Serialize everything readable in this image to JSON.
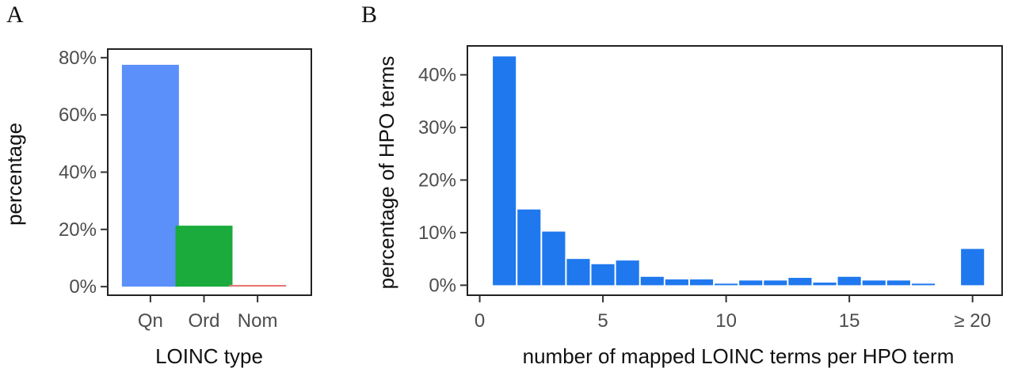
{
  "panels": {
    "a": "A",
    "b": "B"
  },
  "chart_data": [
    {
      "type": "bar",
      "panel": "A",
      "categories": [
        "Qn",
        "Ord",
        "Nom"
      ],
      "values": [
        77.5,
        21.3,
        0.6
      ],
      "colors": [
        "#5b8ff9",
        "#1aab3c",
        "#e87878"
      ],
      "xlabel": "LOINC type",
      "ylabel": "percentage",
      "ylim": [
        -3,
        83
      ],
      "yticks": [
        0,
        20,
        40,
        60,
        80
      ],
      "ytick_labels": [
        "0%",
        "20%",
        "40%",
        "60%",
        "80%"
      ],
      "grid": false
    },
    {
      "type": "bar",
      "panel": "B",
      "x": [
        1,
        2,
        3,
        4,
        5,
        6,
        7,
        8,
        9,
        10,
        11,
        12,
        13,
        14,
        15,
        16,
        17,
        18,
        20
      ],
      "values": [
        43.5,
        14.4,
        10.2,
        5.0,
        4.0,
        4.7,
        1.6,
        1.1,
        1.1,
        0.3,
        0.9,
        0.9,
        1.4,
        0.5,
        1.6,
        0.9,
        0.9,
        0.3,
        6.9
      ],
      "color": "#1f78ee",
      "xlabel": "number of mapped LOINC terms per HPO term",
      "ylabel": "percentage of HPO terms",
      "xlim": [
        -0.5,
        21.2
      ],
      "ylim": [
        -1.9,
        45.5
      ],
      "xticks": [
        0,
        5,
        10,
        15,
        20
      ],
      "xtick_labels": [
        "0",
        "5",
        "10",
        "15",
        "≥ 20"
      ],
      "yticks": [
        0,
        10,
        20,
        30,
        40
      ],
      "ytick_labels": [
        "0%",
        "10%",
        "20%",
        "30%",
        "40%"
      ],
      "grid": false
    }
  ]
}
